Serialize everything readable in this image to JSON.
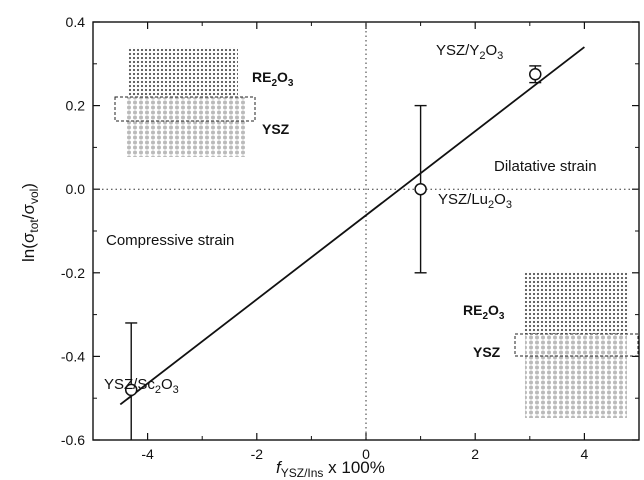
{
  "chart_data": {
    "type": "scatter",
    "xlim": [
      -5,
      5
    ],
    "ylim": [
      -0.6,
      0.4
    ],
    "xticks": [
      "-4",
      "-2",
      "0",
      "2",
      "4"
    ],
    "yticks": [
      "-0.6",
      "-0.4",
      "-0.2",
      "0.0",
      "0.2",
      "0.4"
    ],
    "xticks_values": [
      -4,
      -2,
      0,
      2,
      4
    ],
    "yticks_values": [
      -0.6,
      -0.4,
      -0.2,
      0.0,
      0.2,
      0.4
    ],
    "xlabel": {
      "italic": "f",
      "sub": "YSZ/Ins",
      "rest": " x 100%"
    },
    "ylabel": {
      "pre": "ln(σ",
      "sub1": "tot",
      "mid": "/σ",
      "sub2": "vol",
      "post": ")"
    },
    "points": [
      {
        "x": -4.3,
        "y": -0.48,
        "err_low": -0.6,
        "err_high": -0.32,
        "label_main": "YSZ/Sc",
        "label_sub": "2",
        "label_end": "O",
        "label_sub2": "3"
      },
      {
        "x": 1.0,
        "y": 0.0,
        "err_low": -0.2,
        "err_high": 0.2,
        "label_main": "YSZ/Lu",
        "label_sub": "2",
        "label_end": "O",
        "label_sub2": "3"
      },
      {
        "x": 3.1,
        "y": 0.275,
        "err_low": 0.255,
        "err_high": 0.295,
        "label_main": "YSZ/Y",
        "label_sub": "2",
        "label_end": "O",
        "label_sub2": "3"
      }
    ],
    "fit_line": {
      "x": [
        -4.5,
        4.0
      ],
      "y": [
        -0.515,
        0.34
      ]
    },
    "reference_lines": {
      "x": 0,
      "y": 0
    },
    "grid": false,
    "annotations": {
      "dilatative": "Dilatative strain",
      "compressive": "Compressive strain"
    },
    "insets": [
      {
        "name": "dilatative",
        "top_main": "RE",
        "top_sub": "2",
        "top_end": "O",
        "top_sub2": "3",
        "bottom": "YSZ"
      },
      {
        "name": "compressive",
        "top_main": "RE",
        "top_sub": "2",
        "top_end": "O",
        "top_sub2": "3",
        "bottom": "YSZ"
      }
    ]
  }
}
